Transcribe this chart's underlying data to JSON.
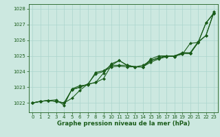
{
  "xlabel": "Graphe pression niveau de la mer (hPa)",
  "xlim": [
    -0.5,
    23.5
  ],
  "ylim": [
    1021.4,
    1028.3
  ],
  "yticks": [
    1022,
    1023,
    1024,
    1025,
    1026,
    1027,
    1028
  ],
  "xticks": [
    0,
    1,
    2,
    3,
    4,
    5,
    6,
    7,
    8,
    9,
    10,
    11,
    12,
    13,
    14,
    15,
    16,
    17,
    18,
    19,
    20,
    21,
    22,
    23
  ],
  "background_color": "#cce8e0",
  "grid_color": "#aad4cc",
  "line_color": "#1a5c1a",
  "series": [
    [
      1022.0,
      1022.1,
      1022.15,
      1022.1,
      1022.0,
      1022.3,
      1022.8,
      1023.2,
      1023.85,
      1024.0,
      1024.3,
      1024.35,
      1024.3,
      1024.3,
      1024.3,
      1024.6,
      1024.8,
      1024.95,
      1025.0,
      1025.1,
      1025.8,
      1025.85,
      1026.3,
      1027.8
    ],
    [
      1022.0,
      1022.1,
      1022.15,
      1022.1,
      1022.0,
      1022.85,
      1023.0,
      1023.2,
      1023.3,
      1023.55,
      1024.4,
      1024.7,
      1024.4,
      1024.3,
      1024.3,
      1024.7,
      1024.9,
      1025.0,
      1024.95,
      1025.2,
      1025.15,
      1025.85,
      1027.1,
      1027.75
    ],
    [
      1022.0,
      1022.1,
      1022.15,
      1022.1,
      1022.0,
      1022.85,
      1023.0,
      1023.2,
      1023.3,
      1023.9,
      1024.5,
      1024.7,
      1024.4,
      1024.3,
      1024.3,
      1024.8,
      1025.0,
      1025.0,
      1024.95,
      1025.15,
      1025.15,
      1025.85,
      1027.1,
      1027.7
    ],
    [
      1022.0,
      1022.1,
      1022.15,
      1022.2,
      1021.85,
      1022.9,
      1023.1,
      1023.15,
      1023.95,
      1024.05,
      1024.4,
      1024.4,
      1024.4,
      1024.3,
      1024.4,
      1024.7,
      1024.85,
      1025.0,
      1025.0,
      1025.2,
      1025.2,
      1025.9,
      1026.3,
      1027.75
    ]
  ],
  "marker": "D",
  "markersize": 2.0,
  "linewidth": 0.8,
  "font_color": "#1a5c1a",
  "tick_fontsize": 5.0,
  "label_fontsize": 6.2,
  "label_fontbold": true
}
